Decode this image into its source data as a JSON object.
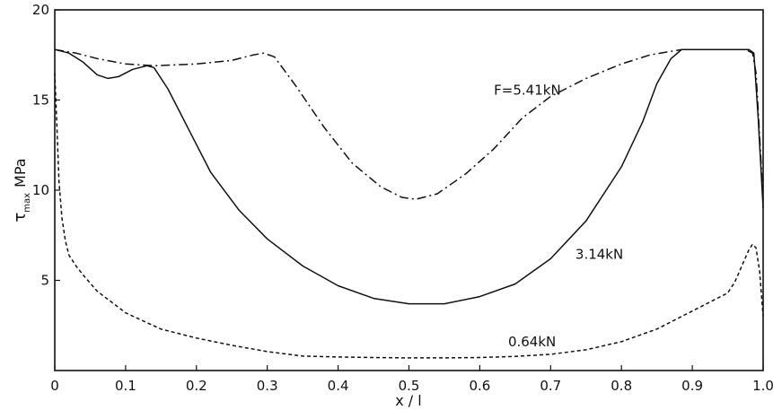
{
  "chart_data": {
    "type": "line",
    "title": "",
    "xlabel": "x / l",
    "ylabel_symbol": "τ",
    "ylabel_subscript": "max",
    "ylabel_unit": "MPa",
    "xlim": [
      0,
      1.0
    ],
    "ylim": [
      0,
      20
    ],
    "grid": false,
    "x_ticks": [
      0,
      0.1,
      0.2,
      0.3,
      0.4,
      0.5,
      0.6,
      0.7,
      0.8,
      0.9,
      1.0
    ],
    "x_tick_labels": [
      "0",
      "0.1",
      "0.2",
      "0.3",
      "0.4",
      "0.5",
      "0.6",
      "0.7",
      "0.8",
      "0.9",
      "1.0"
    ],
    "y_ticks": [
      5,
      10,
      15,
      20
    ],
    "y_tick_labels": [
      "5",
      "10",
      "15",
      "20"
    ],
    "series": [
      {
        "name": "F=5.41kN",
        "style": "dash-dot",
        "label_pos": [
          0.62,
          15.3
        ],
        "x": [
          0,
          0.03,
          0.06,
          0.1,
          0.14,
          0.2,
          0.25,
          0.28,
          0.295,
          0.31,
          0.34,
          0.38,
          0.42,
          0.46,
          0.49,
          0.51,
          0.54,
          0.58,
          0.62,
          0.66,
          0.7,
          0.75,
          0.8,
          0.84,
          0.87,
          0.885,
          0.95,
          0.975,
          0.985,
          0.99,
          0.995,
          1.0
        ],
        "y": [
          17.8,
          17.6,
          17.3,
          17.0,
          16.9,
          17.0,
          17.2,
          17.5,
          17.6,
          17.4,
          15.8,
          13.5,
          11.5,
          10.2,
          9.6,
          9.5,
          9.8,
          10.9,
          12.3,
          14.0,
          15.2,
          16.2,
          17.0,
          17.5,
          17.7,
          17.8,
          17.8,
          17.8,
          17.6,
          16.5,
          13.0,
          9.5
        ]
      },
      {
        "name": "3.14kN",
        "style": "solid",
        "label_pos": [
          0.735,
          6.2
        ],
        "x": [
          0,
          0.02,
          0.04,
          0.06,
          0.075,
          0.09,
          0.11,
          0.13,
          0.14,
          0.16,
          0.19,
          0.22,
          0.26,
          0.3,
          0.35,
          0.4,
          0.45,
          0.5,
          0.55,
          0.6,
          0.65,
          0.7,
          0.75,
          0.8,
          0.83,
          0.85,
          0.87,
          0.885,
          0.95,
          0.98,
          0.987,
          0.993,
          1.0
        ],
        "y": [
          17.8,
          17.6,
          17.1,
          16.4,
          16.2,
          16.3,
          16.7,
          16.9,
          16.8,
          15.6,
          13.3,
          11.0,
          8.9,
          7.3,
          5.8,
          4.7,
          4.0,
          3.7,
          3.7,
          4.1,
          4.8,
          6.2,
          8.3,
          11.3,
          13.8,
          15.9,
          17.3,
          17.8,
          17.8,
          17.8,
          17.6,
          14.0,
          9.0
        ]
      },
      {
        "name": "0.64kN",
        "style": "dashed",
        "label_pos": [
          0.64,
          1.35
        ],
        "x": [
          0,
          0.003,
          0.006,
          0.01,
          0.015,
          0.02,
          0.03,
          0.04,
          0.06,
          0.08,
          0.1,
          0.15,
          0.2,
          0.25,
          0.3,
          0.35,
          0.4,
          0.45,
          0.5,
          0.55,
          0.6,
          0.65,
          0.7,
          0.75,
          0.8,
          0.85,
          0.9,
          0.93,
          0.95,
          0.96,
          0.97,
          0.98,
          0.985,
          0.99,
          0.995,
          1.0
        ],
        "y": [
          16.5,
          13.5,
          10.5,
          8.5,
          7.2,
          6.4,
          5.8,
          5.3,
          4.4,
          3.8,
          3.2,
          2.3,
          1.8,
          1.4,
          1.05,
          0.8,
          0.75,
          0.72,
          0.7,
          0.7,
          0.72,
          0.78,
          0.9,
          1.15,
          1.6,
          2.3,
          3.3,
          3.9,
          4.3,
          4.9,
          5.8,
          6.7,
          7.0,
          6.8,
          5.5,
          3.0
        ]
      }
    ]
  }
}
